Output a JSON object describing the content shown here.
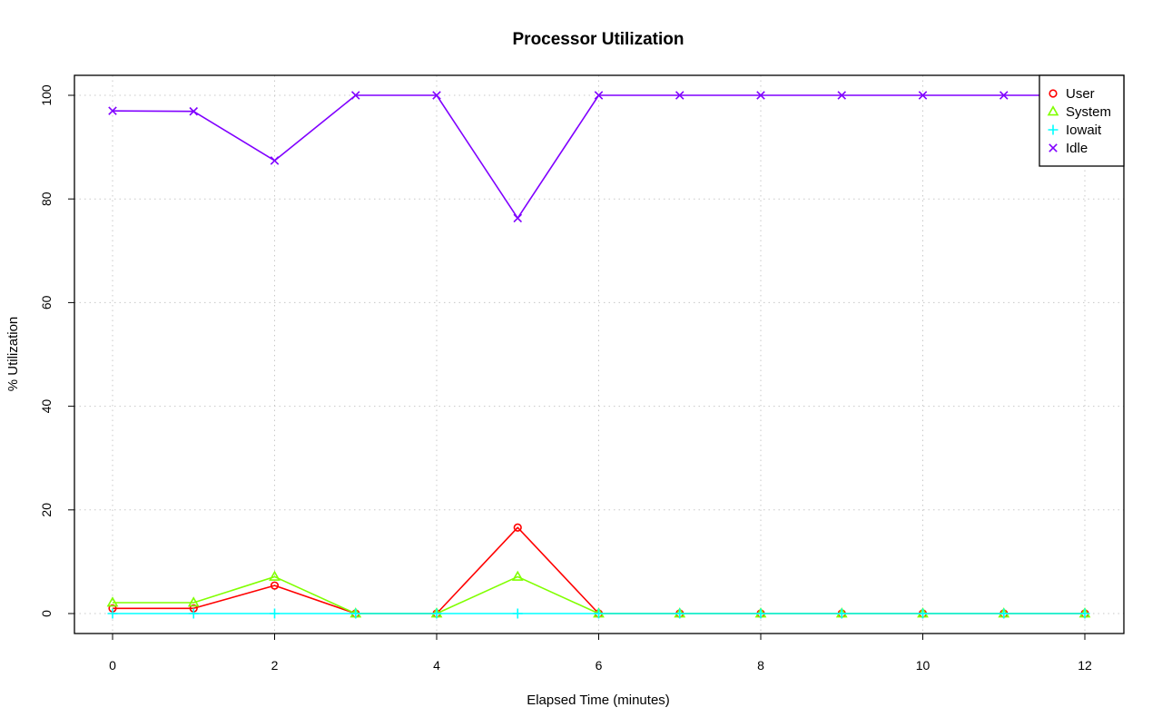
{
  "chart_data": {
    "type": "line",
    "title": "Processor Utilization",
    "xlabel": "Elapsed Time (minutes)",
    "ylabel": "% Utilization",
    "x": [
      0,
      1,
      2,
      3,
      4,
      5,
      6,
      7,
      8,
      9,
      10,
      11,
      12
    ],
    "xlim": [
      0,
      12
    ],
    "ylim": [
      0,
      100
    ],
    "xticks": [
      "0",
      "2",
      "4",
      "6",
      "8",
      "10",
      "12"
    ],
    "yticks": [
      "0",
      "20",
      "40",
      "60",
      "80",
      "100"
    ],
    "grid": true,
    "legend_position": "top-right",
    "series": [
      {
        "name": "User",
        "color": "#ff0000",
        "marker": "circle",
        "values": [
          1.0,
          1.0,
          5.4,
          0,
          0,
          16.6,
          0,
          0,
          0,
          0,
          0,
          0,
          0
        ]
      },
      {
        "name": "System",
        "color": "#80ff00",
        "marker": "triangle",
        "values": [
          2.1,
          2.1,
          7.1,
          0,
          0,
          7.1,
          0,
          0,
          0,
          0,
          0,
          0,
          0
        ]
      },
      {
        "name": "Iowait",
        "color": "#00ffff",
        "marker": "plus",
        "values": [
          0,
          0,
          0,
          0,
          0,
          0,
          0,
          0,
          0,
          0,
          0,
          0,
          0
        ]
      },
      {
        "name": "Idle",
        "color": "#8000ff",
        "marker": "x",
        "values": [
          97,
          96.9,
          87.4,
          100,
          100,
          76.3,
          100,
          100,
          100,
          100,
          100,
          100,
          100
        ]
      }
    ]
  }
}
